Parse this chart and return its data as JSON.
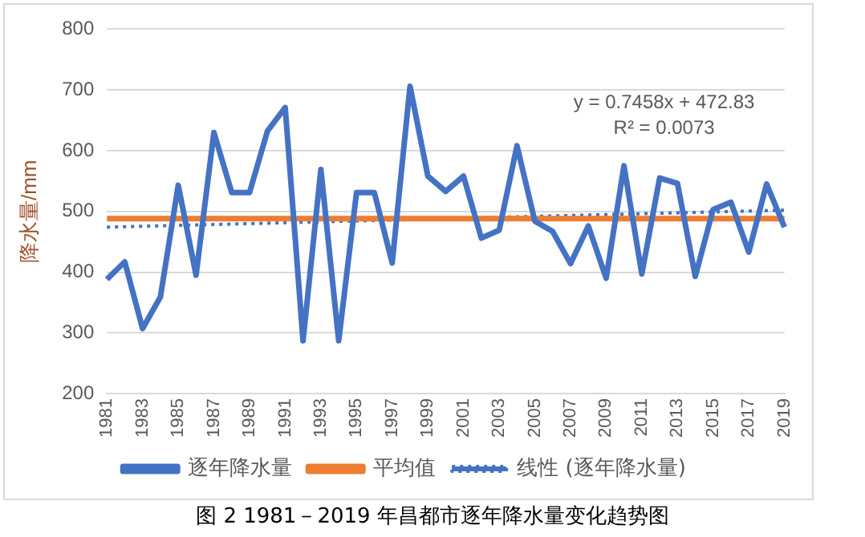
{
  "chart_data": {
    "type": "line",
    "ylabel": "降水量/mm",
    "categories": [
      "1981",
      null,
      "1983",
      null,
      "1985",
      null,
      "1987",
      null,
      "1989",
      null,
      "1991",
      null,
      "1993",
      null,
      "1995",
      null,
      "1997",
      null,
      "1999",
      null,
      "2001",
      null,
      "2003",
      null,
      "2005",
      null,
      "2007",
      null,
      "2009",
      null,
      "2011",
      null,
      "2013",
      null,
      "2015",
      null,
      "2017",
      null,
      "2019"
    ],
    "series": [
      {
        "name": "逐年降水量",
        "color": "#4472c4",
        "line_style": "solid",
        "values": [
          388,
          417,
          307,
          359,
          543,
          395,
          630,
          531,
          531,
          632,
          671,
          287,
          569,
          287,
          531,
          531,
          415,
          706,
          558,
          533,
          558,
          456,
          469,
          608,
          484,
          467,
          414,
          476,
          390,
          575,
          397,
          555,
          546,
          393,
          503,
          515,
          433,
          545,
          474
        ]
      },
      {
        "name": "平均值",
        "color": "#ed7d31",
        "line_style": "solid",
        "values": [
          488,
          488,
          488,
          488,
          488,
          488,
          488,
          488,
          488,
          488,
          488,
          488,
          488,
          488,
          488,
          488,
          488,
          488,
          488,
          488,
          488,
          488,
          488,
          488,
          488,
          488,
          488,
          488,
          488,
          488,
          488,
          488,
          488,
          488,
          488,
          488,
          488,
          488,
          488
        ]
      },
      {
        "name": "线性 (逐年降水量)",
        "color": "#4472c4",
        "line_style": "dotted",
        "values": [
          474,
          null,
          null,
          null,
          null,
          null,
          null,
          null,
          null,
          null,
          null,
          null,
          null,
          null,
          null,
          null,
          null,
          null,
          null,
          null,
          null,
          null,
          null,
          null,
          null,
          null,
          null,
          null,
          null,
          null,
          null,
          null,
          null,
          null,
          null,
          null,
          null,
          null,
          502
        ]
      }
    ],
    "ylim": [
      200,
      800
    ],
    "yticks": [
      200,
      300,
      400,
      500,
      600,
      700,
      800
    ],
    "grid": "y",
    "legend": "bottom",
    "marker": "none",
    "annotations": [
      "y = 0.7458x + 472.83",
      "R² = 0.0073",
      "图 2 1981－2019 年昌都市逐年降水量变化趋势图"
    ]
  }
}
